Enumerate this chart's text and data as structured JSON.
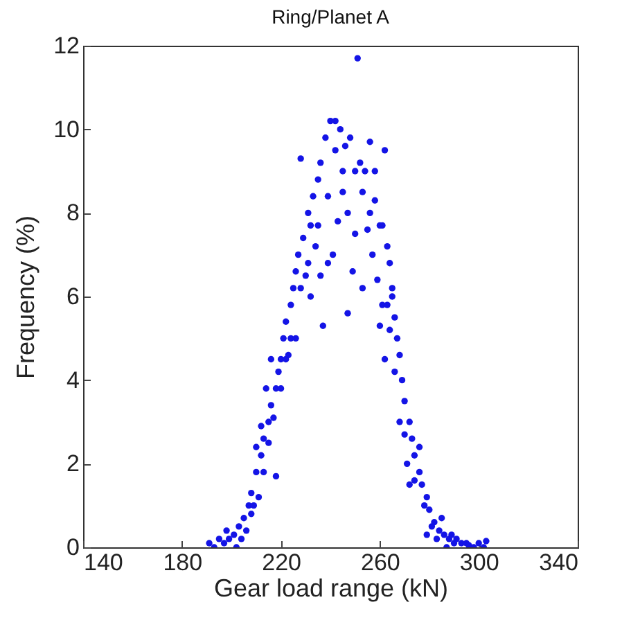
{
  "chart_data": {
    "type": "scatter",
    "title": "Ring/Planet A",
    "xlabel": "Gear load range (kN)",
    "ylabel": "Frequency (%)",
    "xlim": [
      140,
      340
    ],
    "xticks": [
      140,
      180,
      220,
      260,
      300,
      340
    ],
    "ylim": [
      0,
      12
    ],
    "yticks": [
      0,
      2,
      4,
      6,
      8,
      10,
      12
    ],
    "marker": "circle",
    "x": [
      191,
      193,
      195,
      197,
      198,
      199,
      201,
      202,
      203,
      204,
      205,
      206,
      207,
      208,
      208,
      209,
      210,
      210,
      211,
      212,
      212,
      213,
      213,
      214,
      215,
      215,
      216,
      216,
      217,
      218,
      218,
      219,
      220,
      220,
      221,
      222,
      222,
      223,
      224,
      224,
      225,
      226,
      226,
      227,
      228,
      228,
      229,
      230,
      231,
      231,
      232,
      232,
      233,
      234,
      235,
      235,
      236,
      236,
      237,
      238,
      239,
      239,
      240,
      241,
      242,
      242,
      243,
      244,
      245,
      245,
      246,
      247,
      247,
      248,
      249,
      250,
      250,
      251,
      252,
      253,
      253,
      254,
      255,
      256,
      256,
      257,
      258,
      258,
      259,
      260,
      260,
      261,
      261,
      262,
      262,
      263,
      263,
      264,
      264,
      265,
      265,
      266,
      266,
      267,
      268,
      268,
      269,
      270,
      270,
      271,
      272,
      272,
      273,
      274,
      274,
      276,
      276,
      277,
      278,
      279,
      279,
      280,
      281,
      282,
      283,
      284,
      285,
      286,
      287,
      288,
      289,
      290,
      291,
      293,
      295,
      296,
      298,
      300,
      302,
      303
    ],
    "series": [
      {
        "color": "#1414e6",
        "values": [
          0.1,
          0.0,
          0.2,
          0.1,
          0.4,
          0.2,
          0.3,
          0.0,
          0.5,
          0.2,
          0.7,
          0.4,
          1.0,
          1.3,
          0.8,
          1.0,
          1.8,
          2.4,
          1.2,
          2.2,
          2.9,
          2.6,
          1.8,
          3.8,
          3.0,
          2.5,
          3.4,
          4.5,
          3.1,
          3.8,
          1.7,
          4.2,
          4.5,
          3.8,
          5.0,
          5.4,
          4.5,
          4.6,
          5.8,
          5.0,
          6.2,
          6.6,
          5.0,
          7.0,
          9.3,
          6.2,
          7.4,
          6.5,
          8.0,
          6.8,
          7.7,
          6.0,
          8.4,
          7.2,
          8.8,
          7.7,
          9.2,
          6.5,
          5.3,
          9.8,
          6.8,
          8.4,
          10.2,
          7.0,
          10.2,
          9.5,
          7.8,
          10.0,
          8.5,
          9.0,
          9.6,
          5.6,
          8.0,
          9.8,
          6.6,
          9.0,
          7.5,
          11.7,
          9.2,
          6.2,
          8.5,
          9.0,
          7.6,
          9.7,
          8.0,
          7.0,
          8.3,
          9.0,
          6.4,
          7.7,
          5.3,
          5.8,
          7.7,
          9.5,
          4.5,
          7.2,
          5.8,
          6.8,
          5.2,
          6.2,
          6.0,
          5.5,
          4.2,
          5.0,
          4.6,
          3.0,
          4.0,
          3.5,
          2.7,
          2.0,
          3.0,
          1.5,
          2.6,
          2.2,
          1.6,
          1.8,
          2.4,
          1.5,
          1.0,
          1.2,
          0.3,
          0.9,
          0.5,
          0.6,
          0.2,
          0.4,
          0.7,
          0.3,
          0.0,
          0.2,
          0.3,
          0.1,
          0.2,
          0.1,
          0.1,
          0.05,
          0.0,
          0.1,
          0.0,
          0.15
        ]
      }
    ]
  }
}
